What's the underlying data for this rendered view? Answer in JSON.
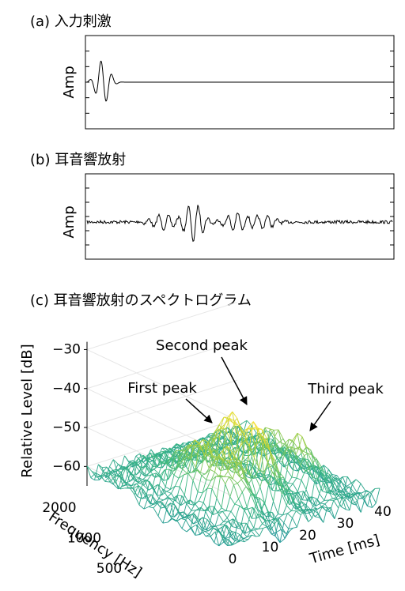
{
  "panels": [
    {
      "title": "(a) 入力刺激",
      "ylabel": "Amp"
    },
    {
      "title": "(b) 耳音響放射",
      "ylabel": "Amp"
    },
    {
      "title": "(c) 耳音響放射のスペクトログラム",
      "zlabel": "Relative Level [dB]",
      "zticks": [
        {
          "value": -30,
          "label": "−30"
        },
        {
          "value": -40,
          "label": "−40"
        },
        {
          "value": -50,
          "label": "−50"
        },
        {
          "value": -60,
          "label": "−60"
        }
      ],
      "freq_label": "Frequency [Hz]",
      "freq_ticks": [
        2000,
        1000,
        500
      ],
      "time_label": "Time [ms]",
      "time_ticks": [
        0,
        10,
        20,
        30,
        40
      ],
      "annotations": [
        "Second peak",
        "First peak",
        "Third peak"
      ]
    }
  ]
}
